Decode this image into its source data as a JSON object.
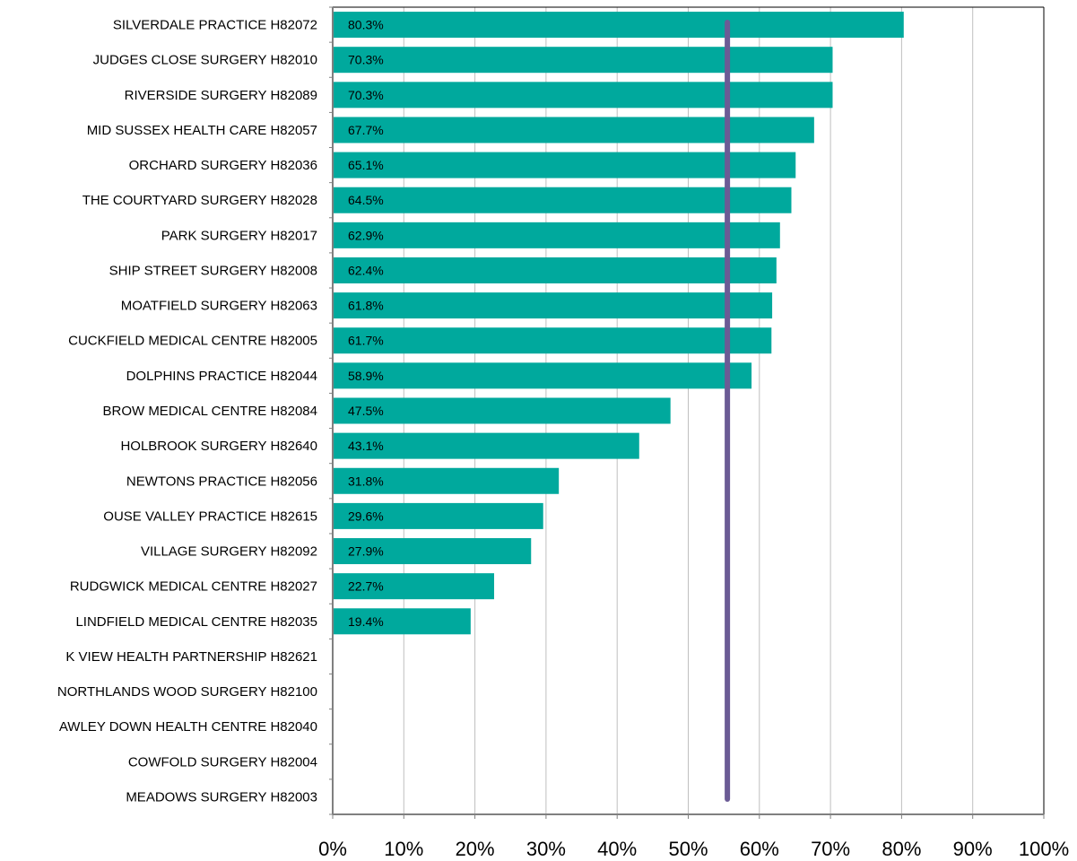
{
  "chart_data": {
    "type": "bar",
    "orientation": "horizontal",
    "title": "",
    "xlabel": "",
    "ylabel": "",
    "xlim": [
      0,
      1
    ],
    "x_ticks": [
      {
        "value": 0.0,
        "label": "0%"
      },
      {
        "value": 0.1,
        "label": "10%"
      },
      {
        "value": 0.2,
        "label": "20%"
      },
      {
        "value": 0.3,
        "label": "30%"
      },
      {
        "value": 0.4,
        "label": "40%"
      },
      {
        "value": 0.5,
        "label": "50%"
      },
      {
        "value": 0.6,
        "label": "60%"
      },
      {
        "value": 0.7,
        "label": "70%"
      },
      {
        "value": 0.8,
        "label": "80%"
      },
      {
        "value": 0.9,
        "label": "90%"
      },
      {
        "value": 1.0,
        "label": "100%"
      }
    ],
    "grid": true,
    "bar_color": "#00A99D",
    "reference_line": {
      "value": 0.555,
      "color": "#6B5B95"
    },
    "categories": [
      "SILVERDALE PRACTICE H82072",
      "JUDGES CLOSE SURGERY H82010",
      "RIVERSIDE SURGERY H82089",
      "MID SUSSEX HEALTH CARE H82057",
      "ORCHARD SURGERY H82036",
      "THE COURTYARD SURGERY H82028",
      "PARK SURGERY H82017",
      "SHIP STREET SURGERY H82008",
      "MOATFIELD SURGERY H82063",
      "CUCKFIELD MEDICAL CENTRE H82005",
      "DOLPHINS PRACTICE H82044",
      "BROW MEDICAL CENTRE H82084",
      "HOLBROOK SURGERY H82640",
      "NEWTONS PRACTICE H82056",
      "OUSE VALLEY PRACTICE H82615",
      "VILLAGE SURGERY H82092",
      "RUDGWICK MEDICAL CENTRE H82027",
      "LINDFIELD MEDICAL CENTRE H82035",
      "K VIEW HEALTH PARTNERSHIP H82621",
      "NORTHLANDS WOOD SURGERY H82100",
      "AWLEY DOWN HEALTH CENTRE H82040",
      "COWFOLD SURGERY H82004",
      "MEADOWS SURGERY H82003"
    ],
    "values": [
      0.803,
      0.703,
      0.703,
      0.677,
      0.651,
      0.645,
      0.629,
      0.624,
      0.618,
      0.617,
      0.589,
      0.475,
      0.431,
      0.318,
      0.296,
      0.279,
      0.227,
      0.194,
      null,
      null,
      null,
      null,
      null
    ],
    "data_labels": [
      "80.3%",
      "70.3%",
      "70.3%",
      "67.7%",
      "65.1%",
      "64.5%",
      "62.9%",
      "62.4%",
      "61.8%",
      "61.7%",
      "58.9%",
      "47.5%",
      "43.1%",
      "31.8%",
      "29.6%",
      "27.9%",
      "22.7%",
      "19.4%",
      "",
      "",
      "",
      "",
      ""
    ]
  }
}
